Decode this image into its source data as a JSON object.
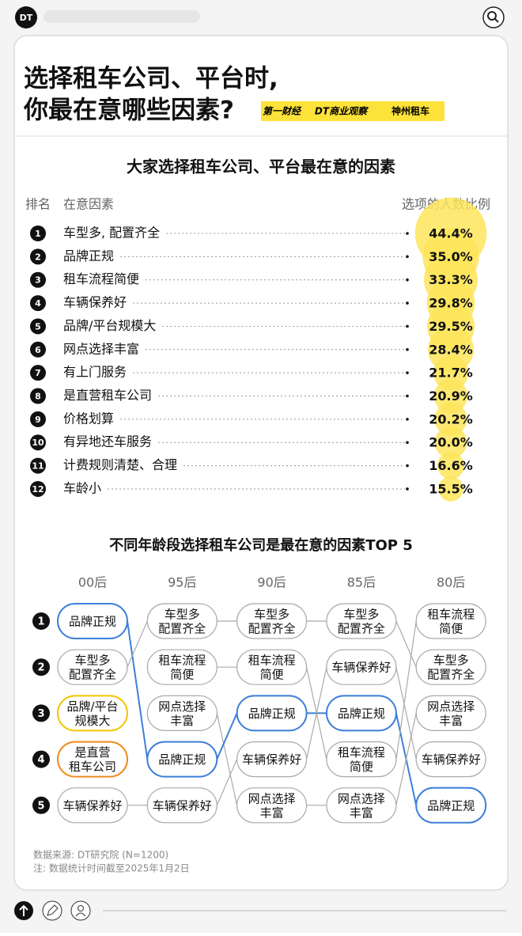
{
  "header": {
    "logo": "DT"
  },
  "title_lines": [
    "选择租车公司、平台时,",
    "你最在意哪些因素?"
  ],
  "brands": [
    "第一财经",
    "DT商业观察",
    "神州租车"
  ],
  "ranking": {
    "title": "大家选择租车公司、平台最在意的因素",
    "columns": [
      "排名",
      "在意因素",
      "选项的人数比例"
    ],
    "color": "#fde55a",
    "items": [
      {
        "rank": 1,
        "name": "车型多, 配置齐全",
        "value": 44.4,
        "label": "44.4%"
      },
      {
        "rank": 2,
        "name": "品牌正规",
        "value": 35.0,
        "label": "35.0%"
      },
      {
        "rank": 3,
        "name": "租车流程简便",
        "value": 33.3,
        "label": "33.3%"
      },
      {
        "rank": 4,
        "name": "车辆保养好",
        "value": 29.8,
        "label": "29.8%"
      },
      {
        "rank": 5,
        "name": "品牌/平台规模大",
        "value": 29.5,
        "label": "29.5%"
      },
      {
        "rank": 6,
        "name": "网点选择丰富",
        "value": 28.4,
        "label": "28.4%"
      },
      {
        "rank": 7,
        "name": "有上门服务",
        "value": 21.7,
        "label": "21.7%"
      },
      {
        "rank": 8,
        "name": "是直营租车公司",
        "value": 20.9,
        "label": "20.9%"
      },
      {
        "rank": 9,
        "name": "价格划算",
        "value": 20.2,
        "label": "20.2%"
      },
      {
        "rank": 10,
        "name": "有异地还车服务",
        "value": 20.0,
        "label": "20.0%"
      },
      {
        "rank": 11,
        "name": "计费规则清楚、合理",
        "value": 16.6,
        "label": "16.6%"
      },
      {
        "rank": 12,
        "name": "车龄小",
        "value": 15.5,
        "label": "15.5%"
      }
    ]
  },
  "bump": {
    "title": "不同年龄段选择租车公司是最在意的因素TOP 5",
    "ranks": [
      1,
      2,
      3,
      4,
      5
    ],
    "columns": [
      {
        "name": "00后",
        "nodes": [
          {
            "lines": [
              "品牌正规"
            ],
            "color": "#3d7fd9"
          },
          {
            "lines": [
              "车型多",
              "配置齐全"
            ],
            "color": "#aaaaaa"
          },
          {
            "lines": [
              "品牌/平台",
              "规模大"
            ],
            "color": "#f2c500"
          },
          {
            "lines": [
              "是直营",
              "租车公司"
            ],
            "color": "#f08a1c"
          },
          {
            "lines": [
              "车辆保养好"
            ],
            "color": "#aaaaaa"
          }
        ]
      },
      {
        "name": "95后",
        "nodes": [
          {
            "lines": [
              "车型多",
              "配置齐全"
            ],
            "color": "#aaaaaa"
          },
          {
            "lines": [
              "租车流程",
              "简便"
            ],
            "color": "#aaaaaa"
          },
          {
            "lines": [
              "网点选择",
              "丰富"
            ],
            "color": "#aaaaaa"
          },
          {
            "lines": [
              "品牌正规"
            ],
            "color": "#3d7fd9"
          },
          {
            "lines": [
              "车辆保养好"
            ],
            "color": "#aaaaaa"
          }
        ]
      },
      {
        "name": "90后",
        "nodes": [
          {
            "lines": [
              "车型多",
              "配置齐全"
            ],
            "color": "#aaaaaa"
          },
          {
            "lines": [
              "租车流程",
              "简便"
            ],
            "color": "#aaaaaa"
          },
          {
            "lines": [
              "品牌正规"
            ],
            "color": "#3d7fd9"
          },
          {
            "lines": [
              "车辆保养好"
            ],
            "color": "#aaaaaa"
          },
          {
            "lines": [
              "网点选择",
              "丰富"
            ],
            "color": "#aaaaaa"
          }
        ]
      },
      {
        "name": "85后",
        "nodes": [
          {
            "lines": [
              "车型多",
              "配置齐全"
            ],
            "color": "#aaaaaa"
          },
          {
            "lines": [
              "车辆保养好"
            ],
            "color": "#aaaaaa"
          },
          {
            "lines": [
              "品牌正规"
            ],
            "color": "#3d7fd9"
          },
          {
            "lines": [
              "租车流程",
              "简便"
            ],
            "color": "#aaaaaa"
          },
          {
            "lines": [
              "网点选择",
              "丰富"
            ],
            "color": "#aaaaaa"
          }
        ]
      },
      {
        "name": "80后",
        "nodes": [
          {
            "lines": [
              "租车流程",
              "简便"
            ],
            "color": "#aaaaaa"
          },
          {
            "lines": [
              "车型多",
              "配置齐全"
            ],
            "color": "#aaaaaa"
          },
          {
            "lines": [
              "网点选择",
              "丰富"
            ],
            "color": "#aaaaaa"
          },
          {
            "lines": [
              "车辆保养好"
            ],
            "color": "#aaaaaa"
          },
          {
            "lines": [
              "品牌正规"
            ],
            "color": "#3d7fd9"
          }
        ]
      }
    ]
  },
  "footer": [
    "数据来源: DT研究院 (N=1200)",
    "注: 数据统计时间截至2025年1月2日"
  ]
}
